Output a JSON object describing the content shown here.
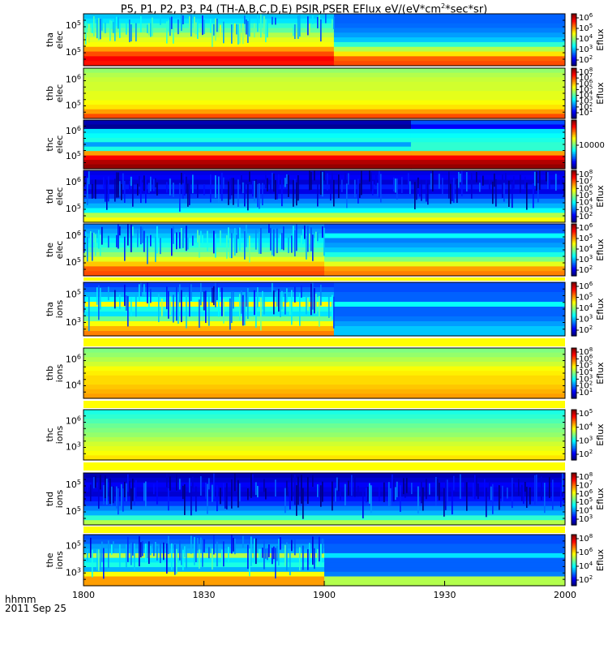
{
  "chart_data": {
    "type": "heatmap",
    "title": "P5, P1, P2, P3, P4 (TH-A,B,C,D,E) PSIR,PSER EFlux eV/(eV*cm",
    "title_sup": "2",
    "title_tail": "*sec*sr)",
    "time_label": "hhmm",
    "date_label": "2011 Sep 25",
    "x_ticks": [
      "1800",
      "1830",
      "1900",
      "1930",
      "2000"
    ],
    "x_range": [
      "18:00",
      "20:00"
    ],
    "panels": [
      {
        "label1": "tha",
        "label2": "elec",
        "y_ticks": [
          "10^5",
          "10^5"
        ],
        "cb_label": "Eflux",
        "cb_ticks": [
          "10^6",
          "10^5",
          "10^4",
          "10^3",
          "10^2"
        ],
        "switch_frac": 0.52,
        "noise_top": 0.45,
        "bands_before": [
          0.32,
          0.35,
          0.42,
          0.47,
          0.55,
          0.6,
          0.62,
          0.72,
          0.8,
          0.88,
          0.86
        ],
        "bands_after": [
          0.22,
          0.22,
          0.23,
          0.25,
          0.28,
          0.32,
          0.42,
          0.55,
          0.65,
          0.78,
          0.8
        ]
      },
      {
        "label1": "thb",
        "label2": "elec",
        "y_ticks": [
          "10^6",
          "10^5"
        ],
        "cb_label": "Eflux",
        "cb_ticks": [
          "10^8",
          "10^7",
          "10^6",
          "10^5",
          "10^4",
          "10^3",
          "10^2",
          "10^1"
        ],
        "switch_frac": 1.0,
        "noise_top": 0.0,
        "bands_before": [
          0.52,
          0.55,
          0.57,
          0.58,
          0.58,
          0.6,
          0.6,
          0.62,
          0.65,
          0.72,
          0.8
        ]
      },
      {
        "label1": "thc",
        "label2": "elec",
        "y_ticks": [
          "10^6",
          "10^5"
        ],
        "cb_label": "",
        "cb_ticks": [
          "10000"
        ],
        "switch_frac": 0.68,
        "noise_top": 0.0,
        "bands_before": [
          0.05,
          0.02,
          0.35,
          0.38,
          0.4,
          0.28,
          0.4,
          0.72,
          0.88,
          0.95,
          0.98
        ],
        "bands_after": [
          0.2,
          0.12,
          0.35,
          0.38,
          0.4,
          0.42,
          0.42,
          0.72,
          0.88,
          0.95,
          0.98
        ]
      },
      {
        "label1": "thd",
        "label2": "elec",
        "y_ticks": [
          "10^6",
          "10^5"
        ],
        "cb_label": "Eflux",
        "cb_ticks": [
          "10^8",
          "10^7",
          "10^6",
          "10^5",
          "10^4",
          "10^3",
          "10^2"
        ],
        "switch_frac": 1.0,
        "noise_top": 0.55,
        "bands_before": [
          0.1,
          0.12,
          0.08,
          0.15,
          0.1,
          0.18,
          0.25,
          0.3,
          0.38,
          0.55,
          0.62
        ]
      },
      {
        "label1": "the",
        "label2": "elec",
        "y_ticks": [
          "10^6",
          "10^5"
        ],
        "cb_label": "Eflux",
        "cb_ticks": [
          "10^6",
          "10^5",
          "10^4",
          "10^3",
          "10^2"
        ],
        "switch_frac": 0.5,
        "noise_top": 0.55,
        "bands_before": [
          0.25,
          0.28,
          0.32,
          0.36,
          0.4,
          0.45,
          0.52,
          0.6,
          0.68,
          0.78,
          0.8
        ],
        "bands_after": [
          0.2,
          0.22,
          0.38,
          0.25,
          0.28,
          0.32,
          0.4,
          0.5,
          0.6,
          0.72,
          0.75
        ]
      },
      {
        "label1": "tha",
        "label2": "ions",
        "y_ticks": [
          "10^5",
          "10^3"
        ],
        "cb_label": "Eflux",
        "cb_ticks": [
          "10^6",
          "10^5",
          "10^4",
          "10^3",
          "10^2"
        ],
        "switch_frac": 0.52,
        "noise_top": 0.65,
        "bands_before": [
          0.18,
          0.22,
          0.3,
          0.38,
          0.62,
          0.4,
          0.35,
          0.48,
          0.62,
          0.7,
          0.75
        ],
        "bands_after": [
          0.2,
          0.2,
          0.22,
          0.22,
          0.38,
          0.22,
          0.22,
          0.24,
          0.28,
          0.32,
          0.32
        ]
      },
      {
        "label1": "thb",
        "label2": "ions",
        "y_ticks": [
          "10^6",
          "10^4"
        ],
        "cb_label": "Eflux",
        "cb_ticks": [
          "10^8",
          "10^6",
          "10^5",
          "10^4",
          "10^3",
          "10^2",
          "10^1"
        ],
        "switch_frac": 1.0,
        "noise_top": 0.0,
        "bands_before": [
          0.5,
          0.52,
          0.55,
          0.58,
          0.62,
          0.64,
          0.66,
          0.66,
          0.68,
          0.7,
          0.72
        ]
      },
      {
        "label1": "thc",
        "label2": "ions",
        "y_ticks": [
          "10^6",
          "10^3"
        ],
        "cb_label": "Eflux",
        "cb_ticks": [
          "10^5",
          "10^4",
          "10^3",
          "10^2"
        ],
        "switch_frac": 1.0,
        "noise_top": 0.0,
        "bands_before": [
          0.4,
          0.42,
          0.45,
          0.48,
          0.5,
          0.52,
          0.55,
          0.58,
          0.6,
          0.62,
          0.65
        ]
      },
      {
        "label1": "thd",
        "label2": "ions",
        "y_ticks": [
          "10^5",
          "10^5"
        ],
        "cb_label": "Eflux",
        "cb_ticks": [
          "10^8",
          "10^7",
          "10^6",
          "10^5",
          "10^4",
          "10^3"
        ],
        "switch_frac": 1.0,
        "noise_top": 0.6,
        "bands_before": [
          0.05,
          0.08,
          0.12,
          0.1,
          0.08,
          0.14,
          0.18,
          0.25,
          0.3,
          0.42,
          0.55
        ]
      },
      {
        "label1": "the",
        "label2": "ions",
        "y_ticks": [
          "10^5",
          "10^3"
        ],
        "cb_label": "Eflux",
        "cb_ticks": [
          "10^8",
          "10^6",
          "10^4",
          "10^2"
        ],
        "switch_frac": 0.5,
        "noise_top": 0.6,
        "bands_before": [
          0.2,
          0.22,
          0.28,
          0.3,
          0.55,
          0.35,
          0.4,
          0.3,
          0.62,
          0.72,
          0.72
        ],
        "bands_after": [
          0.2,
          0.2,
          0.22,
          0.22,
          0.35,
          0.22,
          0.22,
          0.22,
          0.25,
          0.55,
          0.55
        ]
      }
    ]
  }
}
